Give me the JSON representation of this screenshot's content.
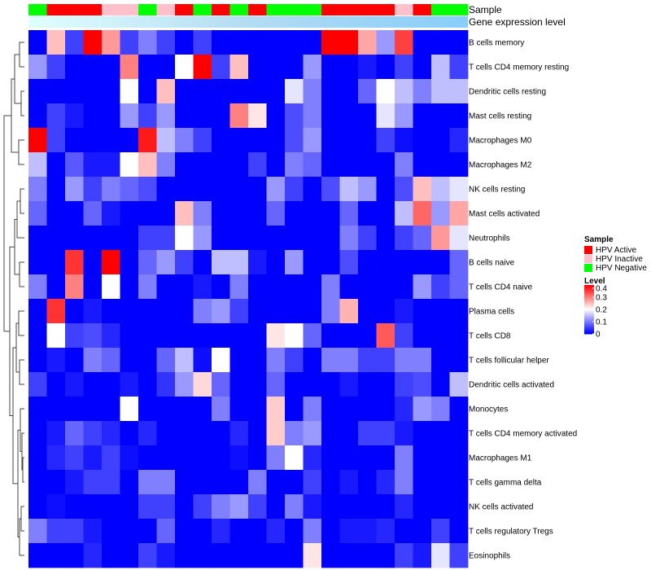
{
  "chart_data": {
    "type": "heatmap",
    "annotation_labels": {
      "sample": "Sample",
      "expression": "Gene expression level"
    },
    "sample_groups": [
      "Negative",
      "Active",
      "Active",
      "Active",
      "Inactive",
      "Inactive",
      "Negative",
      "Inactive",
      "Active",
      "Negative",
      "Active",
      "Negative",
      "Active",
      "Negative",
      "Negative",
      "Negative",
      "Active",
      "Active",
      "Active",
      "Active",
      "Inactive",
      "Active",
      "Negative",
      "Negative"
    ],
    "expression_gradient": [
      "#e0ffff",
      "#b3dcf2",
      "#87cefa"
    ],
    "rows": [
      "B cells memory",
      "T cells CD4 memory resting",
      "Dendritic cells resting",
      "Mast cells resting",
      "Macrophages M0",
      "Macrophages M2",
      "NK cells resting",
      "Mast cells activated",
      "Neutrophils",
      "B cells naive",
      "T cells CD4 naive",
      "Plasma cells",
      "T cells CD8",
      "T cells follicular helper",
      "Dendritic cells activated",
      "Monocytes",
      "T cells CD4 memory activated",
      "Macrophages M1",
      "T cells gamma delta",
      "NK cells activated",
      "T cells regulatory  Tregs",
      "Eosinophils"
    ],
    "values": [
      [
        0,
        0.25,
        0.05,
        0.4,
        0.28,
        0.05,
        0.1,
        0.05,
        0,
        0.05,
        0,
        0,
        0,
        0,
        0,
        0,
        0.4,
        0.4,
        0.27,
        0.12,
        0.35,
        0,
        0,
        0
      ],
      [
        0.12,
        0.05,
        0,
        0,
        0,
        0.3,
        0,
        0,
        0.2,
        0.4,
        0.05,
        0.25,
        0,
        0,
        0,
        0.12,
        0,
        0,
        0.02,
        0,
        0.05,
        0,
        0.15,
        0.05
      ],
      [
        0,
        0,
        0,
        0,
        0,
        0.2,
        0,
        0.25,
        0,
        0,
        0,
        0,
        0,
        0,
        0.18,
        0.1,
        0,
        0,
        0.08,
        0.2,
        0.15,
        0.1,
        0.15,
        0.15
      ],
      [
        0,
        0.05,
        0.02,
        0,
        0,
        0.12,
        0.05,
        0.12,
        0,
        0,
        0,
        0.3,
        0.22,
        0,
        0.06,
        0.1,
        0,
        0,
        0,
        0.18,
        0.12,
        0,
        0,
        0
      ],
      [
        0.4,
        0.05,
        0,
        0,
        0,
        0,
        0.38,
        0.15,
        0.1,
        0.05,
        0,
        0,
        0,
        0,
        0.06,
        0.12,
        0,
        0,
        0,
        0.05,
        0.01,
        0,
        0,
        0.03
      ],
      [
        0.15,
        0,
        0.07,
        0.02,
        0.02,
        0.2,
        0.25,
        0.1,
        0,
        0,
        0,
        0,
        0.05,
        0,
        0.1,
        0.08,
        0,
        0,
        0,
        0,
        0.1,
        0,
        0,
        0
      ],
      [
        0.1,
        0,
        0.12,
        0.05,
        0.1,
        0.08,
        0.06,
        0,
        0,
        0,
        0,
        0,
        0,
        0.12,
        0.05,
        0,
        0.06,
        0.15,
        0.12,
        0,
        0.06,
        0.25,
        0.15,
        0.18
      ],
      [
        0.08,
        0,
        0,
        0.08,
        0.02,
        0,
        0,
        0,
        0.25,
        0.1,
        0,
        0,
        0,
        0.08,
        0,
        0,
        0,
        0.08,
        0,
        0,
        0.15,
        0.32,
        0.12,
        0.27
      ],
      [
        0,
        0,
        0,
        0,
        0,
        0,
        0.05,
        0.05,
        0.2,
        0.12,
        0,
        0,
        0,
        0,
        0,
        0,
        0,
        0.1,
        0.05,
        0,
        0.05,
        0.08,
        0.28,
        0.18
      ],
      [
        0,
        0,
        0.36,
        0,
        0.4,
        0,
        0.08,
        0.12,
        0.05,
        0,
        0.15,
        0.15,
        0.02,
        0,
        0.12,
        0,
        0,
        0.06,
        0,
        0,
        0,
        0,
        0,
        0.08
      ],
      [
        0.1,
        0,
        0.3,
        0,
        0.2,
        0,
        0.1,
        0,
        0,
        0.02,
        0,
        0.1,
        0,
        0,
        0,
        0,
        0.1,
        0,
        0,
        0,
        0,
        0.12,
        0.05,
        0.08
      ],
      [
        0,
        0.36,
        0,
        0.02,
        0,
        0,
        0,
        0,
        0,
        0.1,
        0.12,
        0.05,
        0,
        0,
        0,
        0,
        0.1,
        0.26,
        0,
        0,
        0.02,
        0,
        0,
        0
      ],
      [
        0,
        0.2,
        0.05,
        0.06,
        0.03,
        0,
        0,
        0,
        0,
        0,
        0,
        0,
        0,
        0.22,
        0.2,
        0.08,
        0,
        0,
        0,
        0.33,
        0.05,
        0,
        0,
        0
      ],
      [
        0,
        0.02,
        0,
        0.1,
        0.08,
        0,
        0,
        0.08,
        0.15,
        0.01,
        0.2,
        0,
        0,
        0.1,
        0.05,
        0,
        0.1,
        0.1,
        0.05,
        0.05,
        0.1,
        0.1,
        0,
        0
      ],
      [
        0.05,
        0,
        0.02,
        0,
        0,
        0.02,
        0,
        0.04,
        0.12,
        0.23,
        0.08,
        0,
        0,
        0.08,
        0,
        0,
        0,
        0.02,
        0,
        0,
        0.05,
        0.06,
        0,
        0.15
      ],
      [
        0,
        0,
        0,
        0,
        0,
        0.2,
        0,
        0,
        0,
        0,
        0.1,
        0,
        0,
        0.24,
        0,
        0.1,
        0,
        0,
        0,
        0,
        0.03,
        0.12,
        0.1,
        0
      ],
      [
        0,
        0.02,
        0.08,
        0.05,
        0.03,
        0,
        0.03,
        0,
        0,
        0,
        0,
        0.03,
        0,
        0.24,
        0.1,
        0.12,
        0,
        0,
        0.05,
        0.05,
        0.02,
        0,
        0,
        0
      ],
      [
        0,
        0.03,
        0.05,
        0.02,
        0.05,
        0.01,
        0,
        0,
        0,
        0,
        0,
        0.01,
        0,
        0.1,
        0.2,
        0.03,
        0,
        0,
        0,
        0,
        0.1,
        0,
        0,
        0
      ],
      [
        0,
        0,
        0.02,
        0.05,
        0.05,
        0,
        0.1,
        0.1,
        0,
        0,
        0,
        0,
        0.1,
        0,
        0,
        0.05,
        0,
        0.02,
        0,
        0.03,
        0.1,
        0,
        0,
        0
      ],
      [
        0,
        0.01,
        0,
        0,
        0,
        0,
        0.05,
        0.05,
        0,
        0.05,
        0.1,
        0.12,
        0.05,
        0,
        0.1,
        0.02,
        0,
        0,
        0,
        0,
        0.03,
        0,
        0,
        0
      ],
      [
        0.1,
        0.05,
        0.05,
        0.02,
        0,
        0,
        0,
        0.08,
        0,
        0,
        0.03,
        0,
        0,
        0.03,
        0,
        0.1,
        0,
        0.02,
        0.02,
        0.03,
        0,
        0,
        0.05,
        0
      ],
      [
        0,
        0,
        0,
        0.03,
        0,
        0,
        0.05,
        0.02,
        0,
        0,
        0,
        0,
        0,
        0,
        0,
        0.22,
        0,
        0,
        0,
        0,
        0.05,
        0.02,
        0.18,
        0.05
      ]
    ],
    "color_scale": {
      "min": 0,
      "max": 0.4,
      "colors": [
        "#0000ff",
        "#ffffff",
        "#ff0000"
      ]
    },
    "legend": {
      "sample": {
        "title": "Sample",
        "entries": [
          {
            "label": "HPV Active",
            "color": "#ff0000"
          },
          {
            "label": "HPV Inactive",
            "color": "#ffc0cb"
          },
          {
            "label": "HPV Negative",
            "color": "#00ff00"
          }
        ]
      },
      "level": {
        "title": "Level",
        "ticks": [
          "0.4",
          "0.3",
          "0.2",
          "0.1",
          "0"
        ],
        "tick_values": [
          0.4,
          0.3,
          0.2,
          0.1,
          0
        ]
      }
    },
    "clustering": "rows (dendrogram at left)"
  }
}
